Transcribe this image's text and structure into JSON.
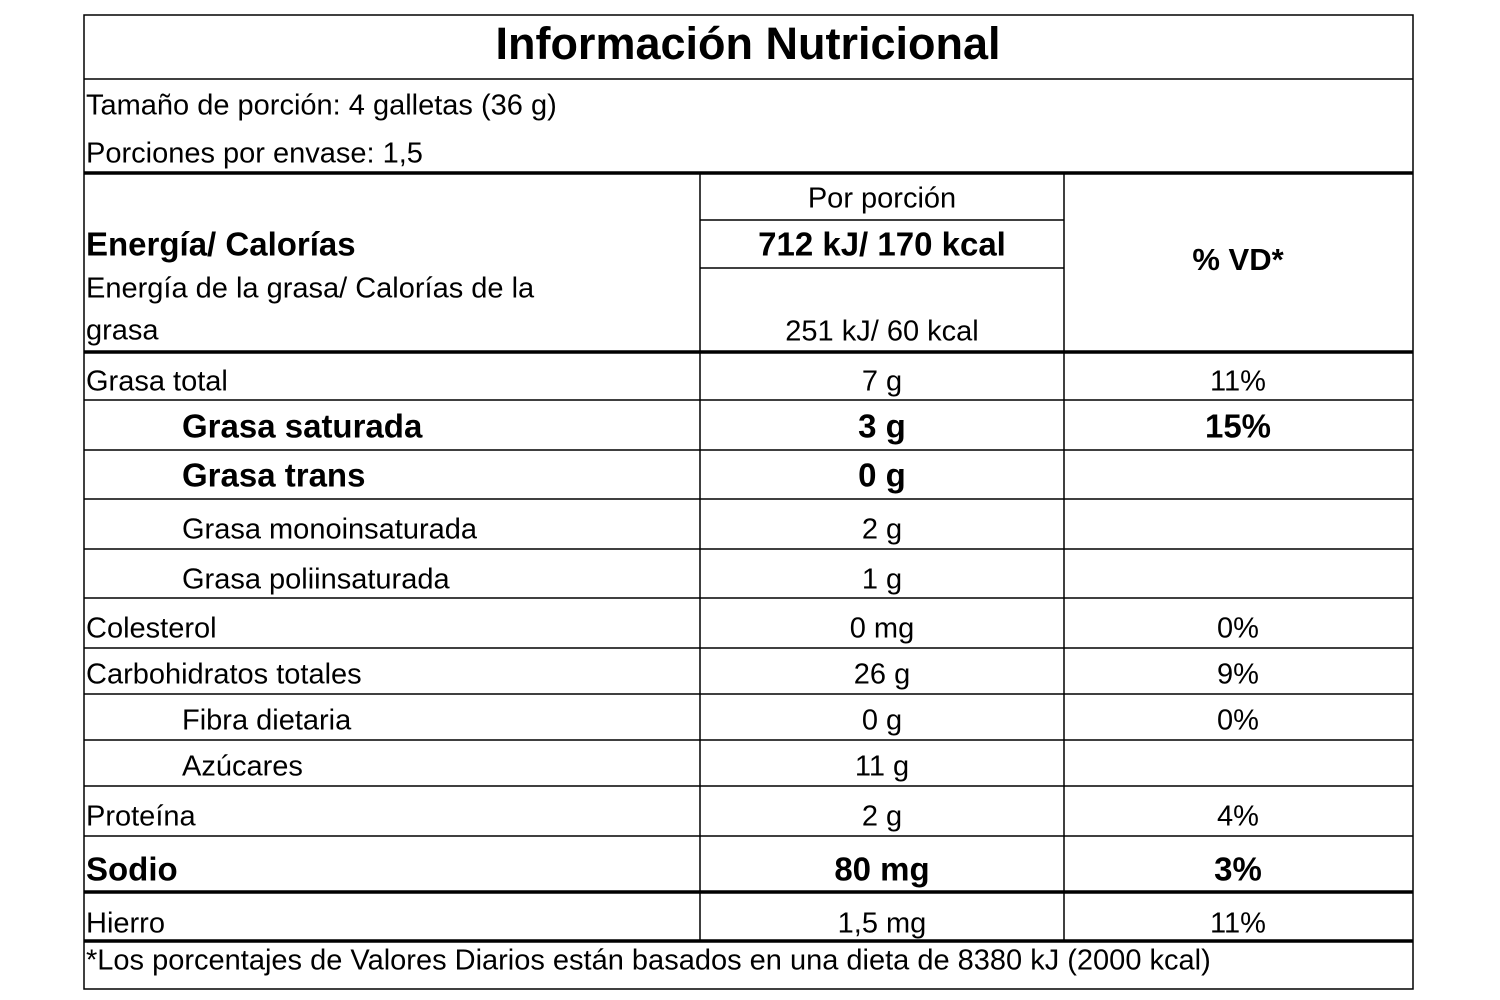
{
  "title": "Información Nutricional",
  "serving": [
    "Tamaño de porción: 4 galletas (36 g)",
    "Porciones por envase: 1,5"
  ],
  "header": {
    "per_serving": "Por porción",
    "energy_label": "Energía/ Calorías",
    "energy_value": "712 kJ/ 170 kcal",
    "fat_energy_label": [
      "Energía de la grasa/ Calorías de la",
      "grasa"
    ],
    "fat_energy_value": "251 kJ/ 60 kcal",
    "dv": "% VD*"
  },
  "rows": [
    {
      "name": "Grasa total",
      "amount": "7 g",
      "dv": "11%"
    },
    {
      "name": "Grasa saturada",
      "amount": "3 g",
      "dv": "15%"
    },
    {
      "name": "Grasa trans",
      "amount": "0 g"
    },
    {
      "name": "Grasa monoinsaturada",
      "amount": "2 g"
    },
    {
      "name": "Grasa poliinsaturada",
      "amount": "1 g"
    },
    {
      "name": "Colesterol",
      "amount": "0 mg",
      "dv": "0%"
    },
    {
      "name": "Carbohidratos totales",
      "amount": "26 g",
      "dv": "9%"
    },
    {
      "name": "Fibra dietaria",
      "amount": "0 g",
      "dv": "0%"
    },
    {
      "name": "Azúcares",
      "amount": "11 g"
    },
    {
      "name": "Proteína",
      "amount": "2 g",
      "dv": "4%"
    },
    {
      "name": "Sodio",
      "amount": "80 mg",
      "dv": "3%"
    },
    {
      "name": "Hierro",
      "amount": "1,5 mg",
      "dv": "11%"
    }
  ],
  "footnote": "*Los porcentajes de Valores Diarios están basados en una dieta de 8380 kJ (2000 kcal)"
}
